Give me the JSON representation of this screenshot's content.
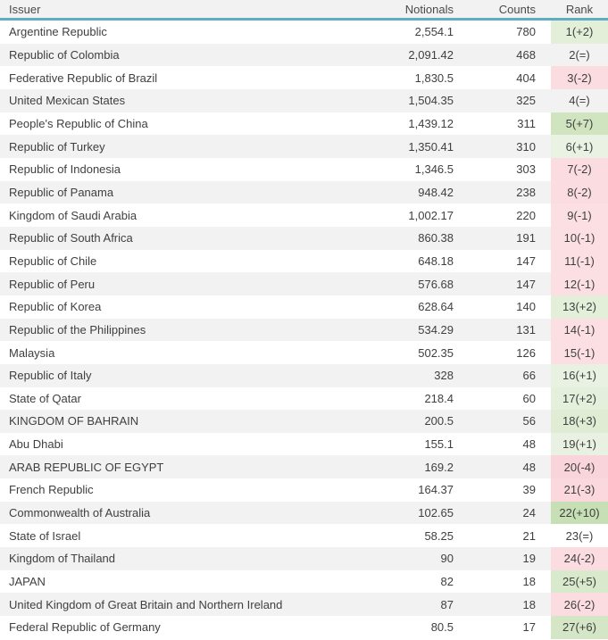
{
  "table": {
    "columns": [
      {
        "key": "issuer",
        "label": "Issuer",
        "align": "left"
      },
      {
        "key": "notionals",
        "label": "Notionals",
        "align": "right"
      },
      {
        "key": "counts",
        "label": "Counts",
        "align": "right"
      },
      {
        "key": "rank",
        "label": "Rank",
        "align": "center"
      }
    ],
    "rows": [
      {
        "issuer": "Argentine Republic",
        "notionals": "2,554.1",
        "counts": "780",
        "rank": "1(+2)",
        "rank_change": 2,
        "rank_bg": "#e3efd9"
      },
      {
        "issuer": "Republic of Colombia",
        "notionals": "2,091.42",
        "counts": "468",
        "rank": "2(=)",
        "rank_change": 0,
        "rank_bg": null
      },
      {
        "issuer": "Federative Republic of Brazil",
        "notionals": "1,830.5",
        "counts": "404",
        "rank": "3(-2)",
        "rank_change": -2,
        "rank_bg": "#fbdce1"
      },
      {
        "issuer": "United Mexican States",
        "notionals": "1,504.35",
        "counts": "325",
        "rank": "4(=)",
        "rank_change": 0,
        "rank_bg": null
      },
      {
        "issuer": "People's Republic of China",
        "notionals": "1,439.12",
        "counts": "311",
        "rank": "5(+7)",
        "rank_change": 7,
        "rank_bg": "#d0e4c0"
      },
      {
        "issuer": "Republic of Turkey",
        "notionals": "1,350.41",
        "counts": "310",
        "rank": "6(+1)",
        "rank_change": 1,
        "rank_bg": "#eaf3e3"
      },
      {
        "issuer": "Republic of Indonesia",
        "notionals": "1,346.5",
        "counts": "303",
        "rank": "7(-2)",
        "rank_change": -2,
        "rank_bg": "#fbdce1"
      },
      {
        "issuer": "Republic of Panama",
        "notionals": "948.42",
        "counts": "238",
        "rank": "8(-2)",
        "rank_change": -2,
        "rank_bg": "#fbdce1"
      },
      {
        "issuer": "Kingdom of Saudi Arabia",
        "notionals": "1,002.17",
        "counts": "220",
        "rank": "9(-1)",
        "rank_change": -1,
        "rank_bg": "#fcdfe3"
      },
      {
        "issuer": "Republic of South Africa",
        "notionals": "860.38",
        "counts": "191",
        "rank": "10(-1)",
        "rank_change": -1,
        "rank_bg": "#fcdfe3"
      },
      {
        "issuer": "Republic of Chile",
        "notionals": "648.18",
        "counts": "147",
        "rank": "11(-1)",
        "rank_change": -1,
        "rank_bg": "#fcdfe3"
      },
      {
        "issuer": "Republic of Peru",
        "notionals": "576.68",
        "counts": "147",
        "rank": "12(-1)",
        "rank_change": -1,
        "rank_bg": "#fcdfe3"
      },
      {
        "issuer": "Republic of Korea",
        "notionals": "628.64",
        "counts": "140",
        "rank": "13(+2)",
        "rank_change": 2,
        "rank_bg": "#e3efd9"
      },
      {
        "issuer": "Republic of the Philippines",
        "notionals": "534.29",
        "counts": "131",
        "rank": "14(-1)",
        "rank_change": -1,
        "rank_bg": "#fcdfe3"
      },
      {
        "issuer": "Malaysia",
        "notionals": "502.35",
        "counts": "126",
        "rank": "15(-1)",
        "rank_change": -1,
        "rank_bg": "#fcdfe3"
      },
      {
        "issuer": "Republic of Italy",
        "notionals": "328",
        "counts": "66",
        "rank": "16(+1)",
        "rank_change": 1,
        "rank_bg": "#e9f2e2"
      },
      {
        "issuer": "State of Qatar",
        "notionals": "218.4",
        "counts": "60",
        "rank": "17(+2)",
        "rank_change": 2,
        "rank_bg": "#e4f0db"
      },
      {
        "issuer": "KINGDOM OF BAHRAIN",
        "notionals": "200.5",
        "counts": "56",
        "rank": "18(+3)",
        "rank_change": 3,
        "rank_bg": "#e0edd4"
      },
      {
        "issuer": "Abu Dhabi",
        "notionals": "155.1",
        "counts": "48",
        "rank": "19(+1)",
        "rank_change": 1,
        "rank_bg": "#e9f2e2"
      },
      {
        "issuer": "ARAB REPUBLIC OF EGYPT",
        "notionals": "169.2",
        "counts": "48",
        "rank": "20(-4)",
        "rank_change": -4,
        "rank_bg": "#f9d5db"
      },
      {
        "issuer": "French Republic",
        "notionals": "164.37",
        "counts": "39",
        "rank": "21(-3)",
        "rank_change": -3,
        "rank_bg": "#fad8dd"
      },
      {
        "issuer": "Commonwealth of Australia",
        "notionals": "102.65",
        "counts": "24",
        "rank": "22(+10)",
        "rank_change": 10,
        "rank_bg": "#c7dfb4"
      },
      {
        "issuer": "State of Israel",
        "notionals": "58.25",
        "counts": "21",
        "rank": "23(=)",
        "rank_change": 0,
        "rank_bg": null
      },
      {
        "issuer": "Kingdom of Thailand",
        "notionals": "90",
        "counts": "19",
        "rank": "24(-2)",
        "rank_change": -2,
        "rank_bg": "#fbdce1"
      },
      {
        "issuer": "JAPAN",
        "notionals": "82",
        "counts": "18",
        "rank": "25(+5)",
        "rank_change": 5,
        "rank_bg": "#d9e9cc"
      },
      {
        "issuer": "United Kingdom of Great Britain and Northern Ireland",
        "notionals": "87",
        "counts": "18",
        "rank": "26(-2)",
        "rank_change": -2,
        "rank_bg": "#fbdce1"
      },
      {
        "issuer": "Federal Republic of Germany",
        "notionals": "80.5",
        "counts": "17",
        "rank": "27(+6)",
        "rank_change": 6,
        "rank_bg": "#d4e6c6"
      }
    ]
  },
  "colors": {
    "header_bg": "#f2f2f2",
    "header_underline": "#5eadc0",
    "stripe_bg": "#f2f2f2",
    "row_bg": "#ffffff",
    "text": "#3f3f3f",
    "header_text": "#4a4a4a",
    "rank_up": "#d0e4c0",
    "rank_down": "#fbdce1"
  }
}
